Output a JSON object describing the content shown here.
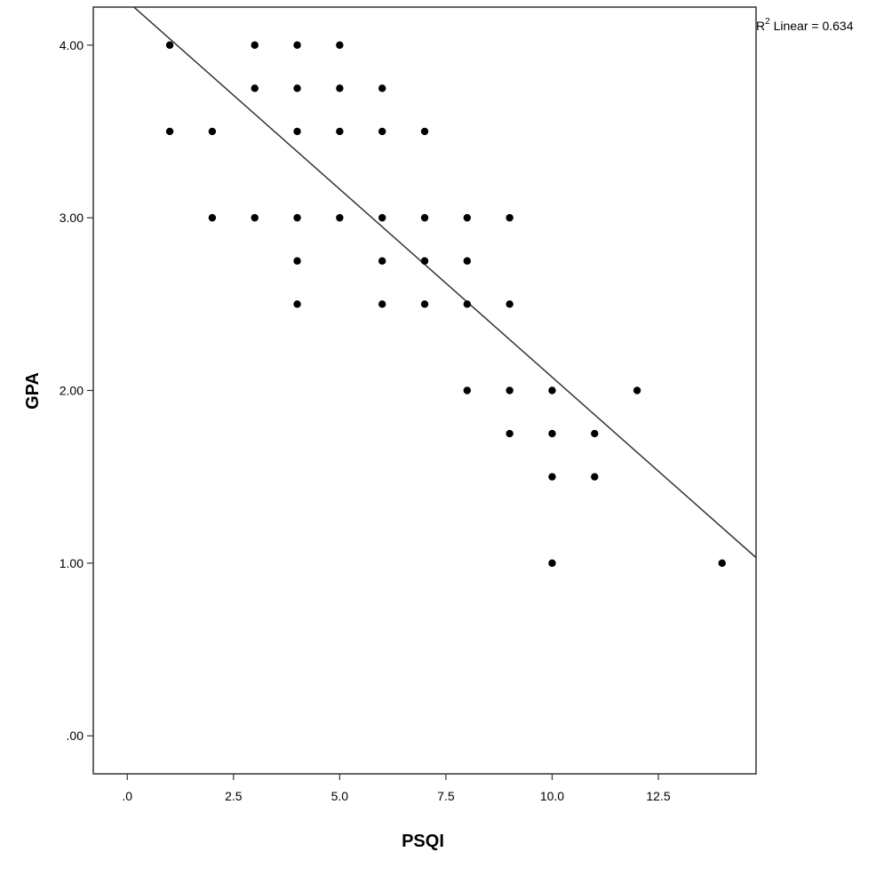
{
  "chart_data": {
    "type": "scatter",
    "xlabel": "PSQI",
    "ylabel": "GPA",
    "xlim": [
      -0.8,
      14.8
    ],
    "ylim": [
      -0.22,
      4.22
    ],
    "x_ticks": [
      0,
      2.5,
      5.0,
      7.5,
      10.0,
      12.5
    ],
    "x_tick_labels": [
      ".0",
      "2.5",
      "5.0",
      "7.5",
      "10.0",
      "12.5"
    ],
    "y_ticks": [
      0,
      1,
      2,
      3,
      4
    ],
    "y_tick_labels": [
      ".00",
      "1.00",
      "2.00",
      "3.00",
      "4.00"
    ],
    "grid": false,
    "points": [
      {
        "x": 1,
        "y": 4.0
      },
      {
        "x": 1,
        "y": 3.5
      },
      {
        "x": 2,
        "y": 3.5
      },
      {
        "x": 2,
        "y": 3.0
      },
      {
        "x": 3,
        "y": 4.0
      },
      {
        "x": 3,
        "y": 3.75
      },
      {
        "x": 3,
        "y": 3.0
      },
      {
        "x": 4,
        "y": 4.0
      },
      {
        "x": 4,
        "y": 3.75
      },
      {
        "x": 4,
        "y": 3.5
      },
      {
        "x": 4,
        "y": 3.0
      },
      {
        "x": 4,
        "y": 2.75
      },
      {
        "x": 4,
        "y": 2.5
      },
      {
        "x": 5,
        "y": 4.0
      },
      {
        "x": 5,
        "y": 3.75
      },
      {
        "x": 5,
        "y": 3.5
      },
      {
        "x": 5,
        "y": 3.0
      },
      {
        "x": 6,
        "y": 3.75
      },
      {
        "x": 6,
        "y": 3.5
      },
      {
        "x": 6,
        "y": 3.0
      },
      {
        "x": 6,
        "y": 2.75
      },
      {
        "x": 6,
        "y": 2.5
      },
      {
        "x": 7,
        "y": 3.5
      },
      {
        "x": 7,
        "y": 3.0
      },
      {
        "x": 7,
        "y": 2.75
      },
      {
        "x": 7,
        "y": 2.5
      },
      {
        "x": 8,
        "y": 3.0
      },
      {
        "x": 8,
        "y": 2.75
      },
      {
        "x": 8,
        "y": 2.5
      },
      {
        "x": 8,
        "y": 2.0
      },
      {
        "x": 9,
        "y": 3.0
      },
      {
        "x": 9,
        "y": 2.5
      },
      {
        "x": 9,
        "y": 2.0
      },
      {
        "x": 9,
        "y": 1.75
      },
      {
        "x": 10,
        "y": 2.0
      },
      {
        "x": 10,
        "y": 1.75
      },
      {
        "x": 10,
        "y": 1.5
      },
      {
        "x": 10,
        "y": 1.0
      },
      {
        "x": 11,
        "y": 1.75
      },
      {
        "x": 11,
        "y": 1.5
      },
      {
        "x": 12,
        "y": 2.0
      },
      {
        "x": 14,
        "y": 1.0
      }
    ],
    "fit_line": {
      "type": "linear",
      "intercept": 4.254,
      "slope": -0.2177,
      "r2": 0.634
    },
    "annotation": {
      "r_label": "R",
      "superscript": "2",
      "text": " Linear = 0.634"
    },
    "colors": {
      "points": "#000000",
      "line": "#333333",
      "frame": "#333333"
    }
  }
}
